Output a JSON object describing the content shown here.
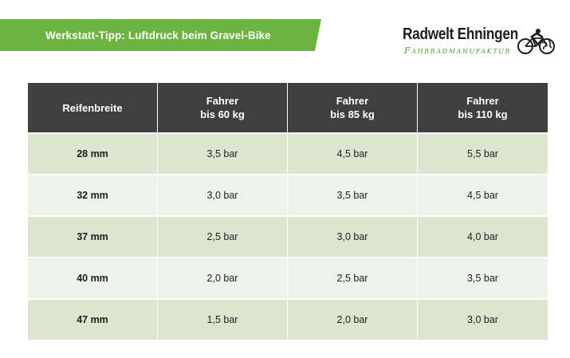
{
  "header": {
    "title": "Werkstatt-Tipp: Luftdruck beim Gravel-Bike"
  },
  "logo": {
    "name": "Radwelt Ehningen",
    "subtitle": "Fahrradmanufaktur",
    "icon": "cyclist-globe-icon"
  },
  "colors": {
    "accent_green": "#6cb33f",
    "header_dark": "#3f3f3f",
    "row_dark": "#dbe5cf",
    "row_light": "#eef2e8"
  },
  "table": {
    "columns": [
      {
        "line1": "Reifenbreite",
        "line2": ""
      },
      {
        "line1": "Fahrer",
        "line2": "bis 60 kg"
      },
      {
        "line1": "Fahrer",
        "line2": "bis 85 kg"
      },
      {
        "line1": "Fahrer",
        "line2": "bis 110 kg"
      }
    ],
    "rows": [
      {
        "width": "28 mm",
        "values": [
          "3,5 bar",
          "4,5 bar",
          "5,5 bar"
        ]
      },
      {
        "width": "32 mm",
        "values": [
          "3,0 bar",
          "3,5 bar",
          "4,5 bar"
        ]
      },
      {
        "width": "37 mm",
        "values": [
          "2,5 bar",
          "3,0 bar",
          "4,0 bar"
        ]
      },
      {
        "width": "40 mm",
        "values": [
          "2,0 bar",
          "2,5 bar",
          "3,5 bar"
        ]
      },
      {
        "width": "47 mm",
        "values": [
          "1,5 bar",
          "2,0 bar",
          "3,0 bar"
        ]
      }
    ]
  }
}
